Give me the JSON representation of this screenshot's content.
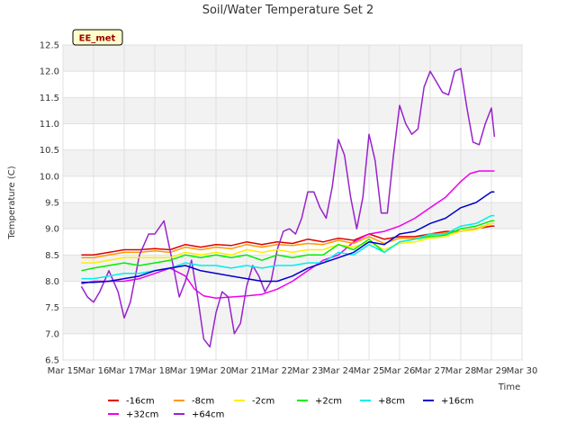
{
  "chart_data": {
    "type": "line",
    "title": "Soil/Water Temperature Set 2",
    "xlabel": "Time",
    "ylabel": "Temperature (C)",
    "badge": "EE_met",
    "xlim": [
      15,
      30
    ],
    "ylim": [
      6.5,
      12.5
    ],
    "x_ticks": [
      {
        "v": 15,
        "label": "Mar 15"
      },
      {
        "v": 16,
        "label": "Mar 16"
      },
      {
        "v": 17,
        "label": "Mar 17"
      },
      {
        "v": 18,
        "label": "Mar 18"
      },
      {
        "v": 19,
        "label": "Mar 19"
      },
      {
        "v": 20,
        "label": "Mar 20"
      },
      {
        "v": 21,
        "label": "Mar 21"
      },
      {
        "v": 22,
        "label": "Mar 22"
      },
      {
        "v": 23,
        "label": "Mar 23"
      },
      {
        "v": 24,
        "label": "Mar 24"
      },
      {
        "v": 25,
        "label": "Mar 25"
      },
      {
        "v": 26,
        "label": "Mar 26"
      },
      {
        "v": 27,
        "label": "Mar 27"
      },
      {
        "v": 28,
        "label": "Mar 28"
      },
      {
        "v": 29,
        "label": "Mar 29"
      },
      {
        "v": 30,
        "label": "Mar 30"
      }
    ],
    "y_ticks": [
      {
        "v": 6.5,
        "label": "6.5"
      },
      {
        "v": 7.0,
        "label": "7.0"
      },
      {
        "v": 7.5,
        "label": "7.5"
      },
      {
        "v": 8.0,
        "label": "8.0"
      },
      {
        "v": 8.5,
        "label": "8.5"
      },
      {
        "v": 9.0,
        "label": "9.0"
      },
      {
        "v": 9.5,
        "label": "9.5"
      },
      {
        "v": 10.0,
        "label": "10.0"
      },
      {
        "v": 10.5,
        "label": "10.5"
      },
      {
        "v": 11.0,
        "label": "11.0"
      },
      {
        "v": 11.5,
        "label": "11.5"
      },
      {
        "v": 12.0,
        "label": "12.0"
      },
      {
        "v": 12.5,
        "label": "12.5"
      }
    ],
    "grid": true,
    "legend_position": "bottom",
    "series": [
      {
        "name": "-16cm",
        "color": "#e00000",
        "x": [
          15.6,
          16,
          16.5,
          17,
          17.5,
          18,
          18.5,
          19,
          19.5,
          20,
          20.5,
          21,
          21.5,
          22,
          22.5,
          23,
          23.5,
          24,
          24.5,
          25,
          25.5,
          26,
          26.5,
          27,
          27.5,
          28,
          28.5,
          29,
          29.1
        ],
        "y": [
          8.5,
          8.5,
          8.55,
          8.6,
          8.6,
          8.62,
          8.6,
          8.7,
          8.65,
          8.7,
          8.68,
          8.75,
          8.7,
          8.75,
          8.72,
          8.8,
          8.75,
          8.82,
          8.78,
          8.9,
          8.8,
          8.85,
          8.85,
          8.9,
          8.95,
          8.95,
          9.0,
          9.05,
          9.05
        ]
      },
      {
        "name": "+32cm",
        "color": "#ee00ee",
        "x": [
          15.6,
          16,
          16.5,
          17,
          17.5,
          18,
          18.5,
          19,
          19.3,
          19.6,
          20,
          20.5,
          21,
          21.5,
          22,
          22.5,
          23,
          23.5,
          24,
          24.5,
          25,
          25.5,
          26,
          26.5,
          27,
          27.5,
          28,
          28.3,
          28.6,
          29,
          29.1
        ],
        "y": [
          7.95,
          8.0,
          8.0,
          8.0,
          8.05,
          8.15,
          8.25,
          8.1,
          7.85,
          7.72,
          7.68,
          7.7,
          7.72,
          7.75,
          7.85,
          8.0,
          8.2,
          8.4,
          8.5,
          8.75,
          8.9,
          8.95,
          9.05,
          9.2,
          9.4,
          9.6,
          9.9,
          10.05,
          10.1,
          10.1,
          10.1
        ]
      },
      {
        "name": "-8cm",
        "color": "#ff9900",
        "x": [
          15.6,
          16,
          16.5,
          17,
          17.5,
          18,
          18.5,
          19,
          19.5,
          20,
          20.5,
          21,
          21.5,
          22,
          22.5,
          23,
          23.5,
          24,
          24.5,
          25,
          25.5,
          26,
          26.5,
          27,
          27.5,
          28,
          28.5,
          29,
          29.1
        ],
        "y": [
          8.45,
          8.45,
          8.5,
          8.55,
          8.55,
          8.58,
          8.55,
          8.65,
          8.6,
          8.65,
          8.62,
          8.7,
          8.65,
          8.7,
          8.68,
          8.72,
          8.7,
          8.78,
          8.72,
          8.85,
          8.72,
          8.82,
          8.82,
          8.88,
          8.92,
          8.95,
          9.0,
          9.1,
          9.1
        ]
      },
      {
        "name": "+64cm",
        "color": "#9922cc",
        "x": [
          15.6,
          15.8,
          16,
          16.2,
          16.5,
          16.8,
          17,
          17.2,
          17.5,
          17.8,
          18,
          18.3,
          18.6,
          18.8,
          19,
          19.2,
          19.4,
          19.6,
          19.8,
          20.0,
          20.2,
          20.4,
          20.6,
          20.8,
          21.0,
          21.2,
          21.4,
          21.6,
          21.8,
          22.0,
          22.2,
          22.4,
          22.6,
          22.8,
          23.0,
          23.2,
          23.4,
          23.6,
          23.8,
          24.0,
          24.2,
          24.4,
          24.6,
          24.8,
          25.0,
          25.2,
          25.4,
          25.6,
          25.8,
          26.0,
          26.2,
          26.4,
          26.6,
          26.8,
          27.0,
          27.2,
          27.4,
          27.6,
          27.8,
          28.0,
          28.2,
          28.4,
          28.6,
          28.8,
          29.0,
          29.1
        ],
        "y": [
          7.9,
          7.7,
          7.6,
          7.8,
          8.2,
          7.8,
          7.3,
          7.6,
          8.5,
          8.9,
          8.9,
          9.15,
          8.3,
          7.7,
          8.0,
          8.4,
          7.7,
          6.9,
          6.75,
          7.4,
          7.8,
          7.7,
          7.0,
          7.2,
          7.9,
          8.3,
          8.1,
          7.8,
          8.0,
          8.6,
          8.95,
          9.0,
          8.9,
          9.2,
          9.7,
          9.7,
          9.4,
          9.2,
          9.8,
          10.7,
          10.4,
          9.6,
          9.0,
          9.6,
          10.8,
          10.3,
          9.3,
          9.3,
          10.4,
          11.35,
          11.0,
          10.8,
          10.9,
          11.7,
          12.0,
          11.8,
          11.6,
          11.55,
          12.0,
          12.05,
          11.3,
          10.65,
          10.6,
          11.0,
          11.3,
          10.75
        ]
      },
      {
        "name": "-2cm",
        "color": "#ffee00",
        "x": [
          15.6,
          16,
          16.5,
          17,
          17.5,
          18,
          18.5,
          19,
          19.5,
          20,
          20.5,
          21,
          21.5,
          22,
          22.5,
          23,
          23.5,
          24,
          24.5,
          25,
          25.5,
          26,
          26.5,
          27,
          27.5,
          28,
          28.5,
          29,
          29.1
        ],
        "y": [
          8.35,
          8.35,
          8.4,
          8.45,
          8.45,
          8.45,
          8.45,
          8.55,
          8.5,
          8.55,
          8.5,
          8.6,
          8.55,
          8.6,
          8.55,
          8.6,
          8.6,
          8.7,
          8.65,
          8.75,
          8.6,
          8.72,
          8.75,
          8.82,
          8.85,
          8.95,
          8.98,
          9.1,
          9.1
        ]
      },
      {
        "name": "+2cm",
        "color": "#00ee00",
        "x": [
          15.6,
          16,
          16.5,
          17,
          17.5,
          18,
          18.5,
          19,
          19.5,
          20,
          20.5,
          21,
          21.5,
          22,
          22.5,
          23,
          23.5,
          24,
          24.5,
          25,
          25.5,
          26,
          26.5,
          27,
          27.5,
          28,
          28.5,
          29,
          29.1
        ],
        "y": [
          8.2,
          8.25,
          8.3,
          8.35,
          8.3,
          8.35,
          8.4,
          8.5,
          8.45,
          8.5,
          8.45,
          8.5,
          8.4,
          8.5,
          8.45,
          8.5,
          8.5,
          8.7,
          8.6,
          8.8,
          8.55,
          8.75,
          8.8,
          8.85,
          8.88,
          9.0,
          9.05,
          9.15,
          9.15
        ]
      },
      {
        "name": "+8cm",
        "color": "#00eeee",
        "x": [
          15.6,
          16,
          16.5,
          17,
          17.5,
          18,
          18.5,
          19,
          19.5,
          20,
          20.5,
          21,
          21.5,
          22,
          22.5,
          23,
          23.5,
          24,
          24.5,
          25,
          25.5,
          26,
          26.5,
          27,
          27.5,
          28,
          28.5,
          29,
          29.1
        ],
        "y": [
          8.05,
          8.05,
          8.1,
          8.15,
          8.15,
          8.2,
          8.25,
          8.35,
          8.3,
          8.3,
          8.25,
          8.3,
          8.25,
          8.3,
          8.3,
          8.35,
          8.35,
          8.55,
          8.5,
          8.7,
          8.55,
          8.75,
          8.8,
          8.9,
          8.9,
          9.05,
          9.1,
          9.25,
          9.25
        ]
      },
      {
        "name": "+16cm",
        "color": "#0000cc",
        "x": [
          15.6,
          16,
          16.5,
          17,
          17.5,
          18,
          18.5,
          19,
          19.5,
          20,
          20.5,
          21,
          21.5,
          22,
          22.5,
          23,
          23.5,
          24,
          24.5,
          25,
          25.5,
          26,
          26.5,
          27,
          27.5,
          28,
          28.5,
          29,
          29.1
        ],
        "y": [
          7.98,
          7.98,
          8.0,
          8.05,
          8.1,
          8.2,
          8.25,
          8.3,
          8.2,
          8.15,
          8.1,
          8.05,
          8.0,
          8.0,
          8.1,
          8.25,
          8.35,
          8.45,
          8.55,
          8.75,
          8.7,
          8.9,
          8.95,
          9.1,
          9.2,
          9.4,
          9.5,
          9.7,
          9.7
        ]
      }
    ]
  }
}
